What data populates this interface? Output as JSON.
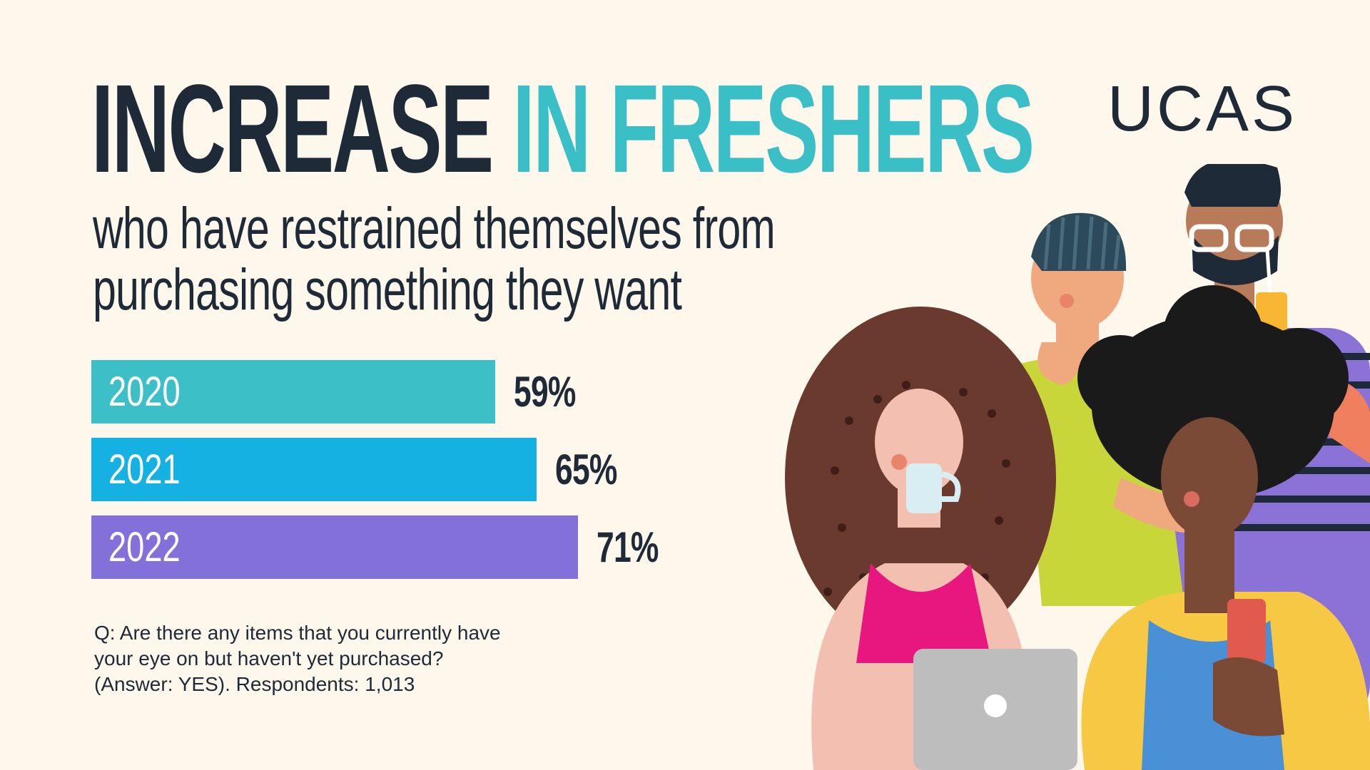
{
  "header": {
    "title_part1": "INCREASE",
    "title_part2": "IN FRESHERS",
    "subtitle_line1": "who have restrained themselves from",
    "subtitle_line2": "purchasing something they want",
    "logo": "UCAS"
  },
  "colors": {
    "dark": "#1f2a38",
    "accent": "#3bbfc7",
    "background": "#fdf7ec"
  },
  "chart_data": {
    "type": "bar",
    "orientation": "horizontal",
    "categories": [
      "2020",
      "2021",
      "2022"
    ],
    "values": [
      59,
      65,
      71
    ],
    "value_labels": [
      "59%",
      "65%",
      "71%"
    ],
    "colors": [
      "#3dbfc8",
      "#16b1e3",
      "#8370d9"
    ],
    "xlim": [
      0,
      100
    ]
  },
  "note": {
    "line1": "Q: Are there any items that you currently have",
    "line2": "your eye on but haven't yet purchased?",
    "line3": "(Answer: YES). Respondents: 1,013"
  },
  "illustration": {
    "icon": "students-illustration"
  }
}
